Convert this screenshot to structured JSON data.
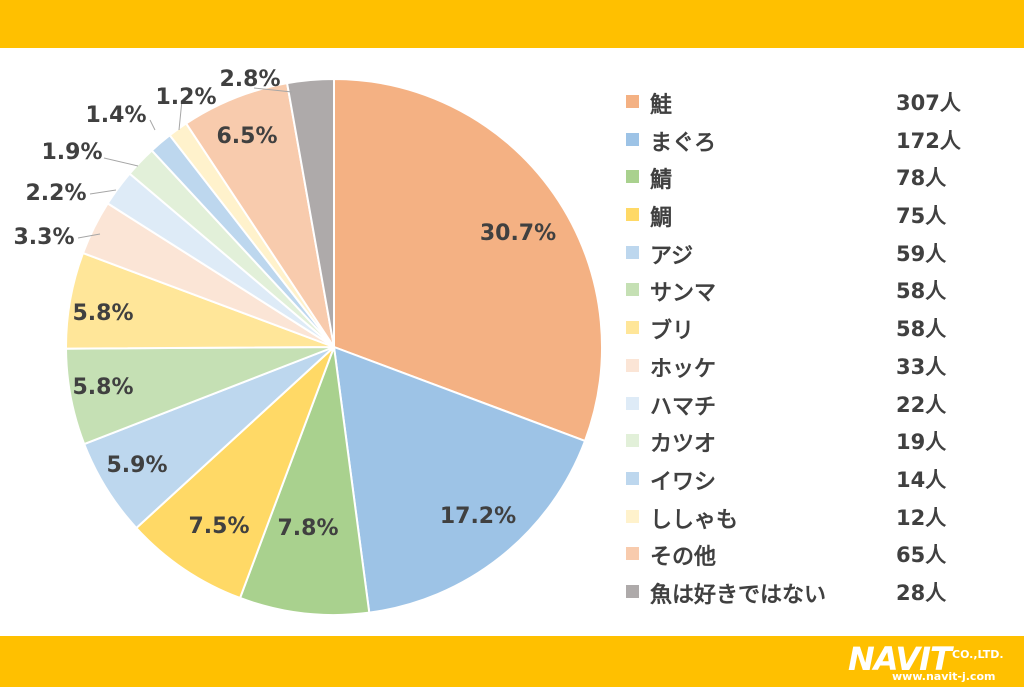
{
  "colors": {
    "band": "#ffc000",
    "text": "#404040"
  },
  "chart_data": {
    "type": "pie",
    "slices": [
      {
        "label": "鮭",
        "count": "307人",
        "percent_label": "30.7%",
        "value": 30.7,
        "color": "#f4b183"
      },
      {
        "label": "まぐろ",
        "count": "172人",
        "percent_label": "17.2%",
        "value": 17.2,
        "color": "#9dc3e6"
      },
      {
        "label": "鯖",
        "count": "78人",
        "percent_label": "7.8%",
        "value": 7.8,
        "color": "#a9d18e"
      },
      {
        "label": "鯛",
        "count": "75人",
        "percent_label": "7.5%",
        "value": 7.5,
        "color": "#ffd966"
      },
      {
        "label": "アジ",
        "count": "59人",
        "percent_label": "5.9%",
        "value": 5.9,
        "color": "#bdd7ee"
      },
      {
        "label": "サンマ",
        "count": "58人",
        "percent_label": "5.8%",
        "value": 5.8,
        "color": "#c5e0b4"
      },
      {
        "label": "ブリ",
        "count": "58人",
        "percent_label": "5.8%",
        "value": 5.8,
        "color": "#ffe699"
      },
      {
        "label": "ホッケ",
        "count": "33人",
        "percent_label": "3.3%",
        "value": 3.3,
        "color": "#fbe5d6"
      },
      {
        "label": "ハマチ",
        "count": "22人",
        "percent_label": "2.2%",
        "value": 2.2,
        "color": "#deebf7"
      },
      {
        "label": "カツオ",
        "count": "19人",
        "percent_label": "1.9%",
        "value": 1.9,
        "color": "#e2f0d9"
      },
      {
        "label": "イワシ",
        "count": "14人",
        "percent_label": "1.4%",
        "value": 1.4,
        "color": "#bdd7ee"
      },
      {
        "label": "ししゃも",
        "count": "12人",
        "percent_label": "1.2%",
        "value": 1.2,
        "color": "#fff2cc"
      },
      {
        "label": "その他",
        "count": "65人",
        "percent_label": "6.5%",
        "value": 6.5,
        "color": "#f8cbad"
      },
      {
        "label": "魚は好きではない",
        "count": "28人",
        "percent_label": "2.8%",
        "value": 2.8,
        "color": "#aeaaaa"
      }
    ],
    "legend_position": "right"
  },
  "logo": {
    "name": "NAVIT",
    "suffix": "CO.,LTD.",
    "url": "www.navit-j.com"
  }
}
